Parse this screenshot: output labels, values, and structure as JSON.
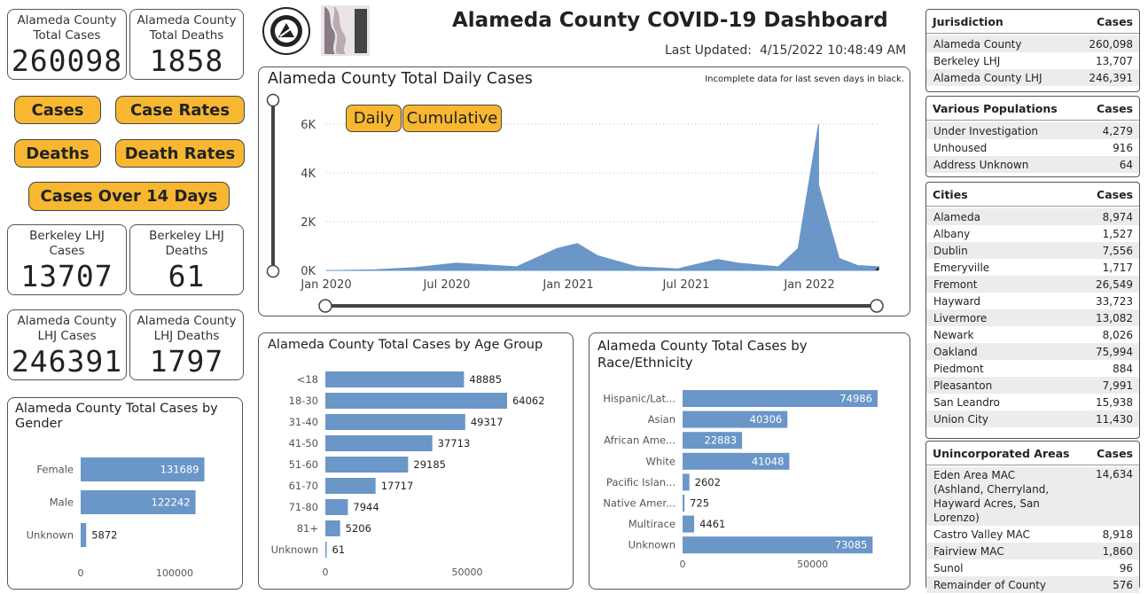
{
  "header": {
    "title": "Alameda County COVID-19 Dashboard",
    "updated_label": "Last Updated:",
    "updated_value": "4/15/2022 10:48:49 AM"
  },
  "kpis": {
    "ac_cases": {
      "label1": "Alameda County",
      "label2": "Total Cases",
      "value": "260098"
    },
    "ac_deaths": {
      "label1": "Alameda County",
      "label2": "Total Deaths",
      "value": "1858"
    },
    "bk_cases": {
      "label1": "Berkeley LHJ",
      "label2": "Cases",
      "value": "13707"
    },
    "bk_deaths": {
      "label1": "Berkeley LHJ",
      "label2": "Deaths",
      "value": "61"
    },
    "lhj_cases": {
      "label1": "Alameda County",
      "label2": "LHJ Cases",
      "value": "246391"
    },
    "lhj_deaths": {
      "label1": "Alameda County",
      "label2": "LHJ Deaths",
      "value": "1797"
    }
  },
  "nav": {
    "cases": "Cases",
    "case_rates": "Case Rates",
    "deaths": "Deaths",
    "death_rates": "Death Rates",
    "cases_14": "Cases Over 14 Days"
  },
  "daily": {
    "title": "Alameda County Total Daily Cases",
    "note": "Incomplete data for last seven days in black.",
    "toggle_daily": "Daily",
    "toggle_cumulative": "Cumulative"
  },
  "tables": {
    "jurisdiction": {
      "h1": "Jurisdiction",
      "h2": "Cases",
      "rows": [
        [
          "Alameda County",
          "260,098"
        ],
        [
          "Berkeley LHJ",
          "13,707"
        ],
        [
          "Alameda County LHJ",
          "246,391"
        ]
      ]
    },
    "populations": {
      "h1": "Various Populations",
      "h2": "Cases",
      "rows": [
        [
          "Under Investigation",
          "4,279"
        ],
        [
          "Unhoused",
          "916"
        ],
        [
          "Address Unknown",
          "64"
        ]
      ]
    },
    "cities": {
      "h1": "Cities",
      "h2": "Cases",
      "rows": [
        [
          "Alameda",
          "8,974"
        ],
        [
          "Albany",
          "1,527"
        ],
        [
          "Dublin",
          "7,556"
        ],
        [
          "Emeryville",
          "1,717"
        ],
        [
          "Fremont",
          "26,549"
        ],
        [
          "Hayward",
          "33,723"
        ],
        [
          "Livermore",
          "13,082"
        ],
        [
          "Newark",
          "8,026"
        ],
        [
          "Oakland",
          "75,994"
        ],
        [
          "Piedmont",
          "884"
        ],
        [
          "Pleasanton",
          "7,991"
        ],
        [
          "San Leandro",
          "15,938"
        ],
        [
          "Union City",
          "11,430"
        ]
      ]
    },
    "unincorporated": {
      "h1": "Unincorporated Areas",
      "h2": "Cases",
      "rows": [
        [
          "Eden Area MAC (Ashland, Cherryland, Hayward Acres, San Lorenzo)",
          "14,634"
        ],
        [
          "Castro Valley MAC",
          "8,918"
        ],
        [
          "Fairview MAC",
          "1,860"
        ],
        [
          "Sunol",
          "96"
        ],
        [
          "Remainder of County",
          "576"
        ]
      ]
    }
  },
  "chart_data": [
    {
      "type": "area",
      "title": "Alameda County Total Daily Cases",
      "x_ticks": [
        "Jan 2020",
        "Jul 2020",
        "Jan 2021",
        "Jul 2021",
        "Jan 2022"
      ],
      "y_ticks": [
        "0K",
        "2K",
        "4K",
        "6K"
      ],
      "ylim": [
        0,
        6500
      ],
      "x": [
        "2020-01",
        "2020-03",
        "2020-05",
        "2020-07",
        "2020-08",
        "2020-10",
        "2020-12",
        "2021-01",
        "2021-02",
        "2021-04",
        "2021-06",
        "2021-08",
        "2021-09",
        "2021-11",
        "2021-12",
        "2022-01",
        "2022-01",
        "2022-02",
        "2022-03",
        "2022-04"
      ],
      "values": [
        0,
        30,
        120,
        300,
        250,
        150,
        900,
        1100,
        600,
        150,
        60,
        450,
        300,
        150,
        900,
        6000,
        3500,
        500,
        200,
        150
      ],
      "color": "#6a96c8",
      "incomplete_color": "#222222"
    },
    {
      "type": "bar",
      "title": "Alameda County Total Cases by Gender",
      "categories": [
        "Female",
        "Male",
        "Unknown"
      ],
      "values": [
        131689,
        122242,
        5872
      ],
      "x_ticks": [
        "0",
        "100000"
      ],
      "xlim": [
        0,
        150000
      ],
      "color": "#6a96c8"
    },
    {
      "type": "bar",
      "title": "Alameda County Total Cases by Age Group",
      "categories": [
        "<18",
        "18-30",
        "31-40",
        "41-50",
        "51-60",
        "61-70",
        "71-80",
        "81+",
        "Unknown"
      ],
      "values": [
        48885,
        64062,
        49317,
        37713,
        29185,
        17717,
        7944,
        5206,
        61
      ],
      "x_ticks": [
        "0",
        "50000"
      ],
      "xlim": [
        0,
        75000
      ],
      "color": "#6a96c8"
    },
    {
      "type": "bar",
      "title": "Alameda County Total Cases by Race/Ethnicity",
      "categories": [
        "Hispanic/Lat...",
        "Asian",
        "African Ame...",
        "White",
        "Pacific Islan...",
        "Native Amer...",
        "Multirace",
        "Unknown"
      ],
      "values": [
        74986,
        40306,
        22883,
        41048,
        2602,
        725,
        4461,
        73085
      ],
      "x_ticks": [
        "0",
        "50000"
      ],
      "xlim": [
        0,
        75000
      ],
      "color": "#6a96c8"
    }
  ]
}
